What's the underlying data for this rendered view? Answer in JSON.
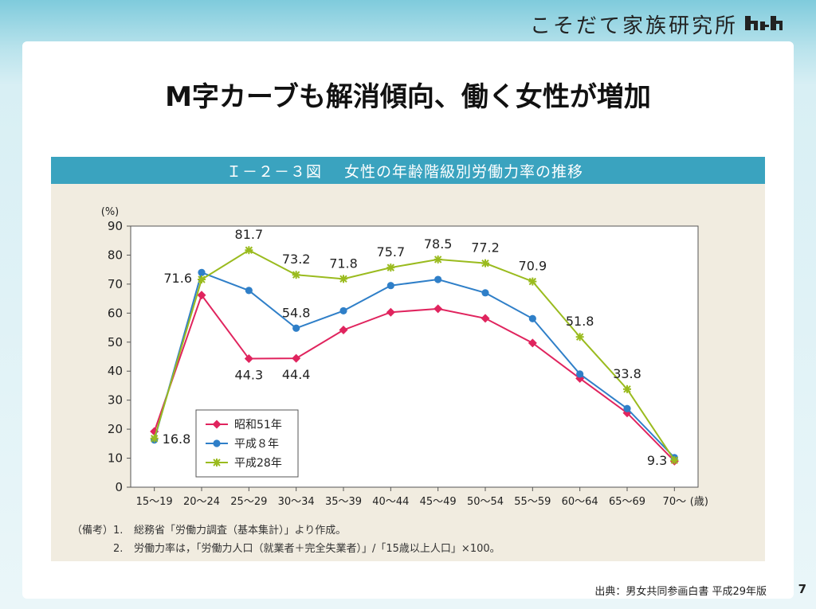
{
  "brand": {
    "name": "こそだて家族研究所"
  },
  "slide": {
    "title": "M字カーブも解消傾向、働く女性が増加",
    "figure_number": "Ｉ－２－３図",
    "figure_title": "女性の年齢階級別労働力率の推移",
    "notes": {
      "label": "（備考）",
      "item1_num": "1.",
      "item1_text": "総務省「労働力調査（基本集計）」より作成。",
      "item2_num": "2.",
      "item2_text": "労働力率は，「労働力人口（就業者＋完全失業者）」/「15歳以上人口」×100。"
    },
    "source": "出典：男女共同参画白書 平成29年版",
    "page_number": "7"
  },
  "colors": {
    "showa51": "#e0245e",
    "heisei8": "#2f7fc8",
    "heisei28": "#9abb1e",
    "header_bar": "#3aa3bf",
    "figure_bg": "#f1ece0"
  },
  "chart_data": {
    "type": "line",
    "ylabel": "(%)",
    "xlabel_suffix": "(歳)",
    "ylim": [
      0,
      90
    ],
    "yticks": [
      0,
      10,
      20,
      30,
      40,
      50,
      60,
      70,
      80,
      90
    ],
    "grid": false,
    "legend_position": "bottom-left",
    "categories": [
      "15～19",
      "20～24",
      "25～29",
      "30～34",
      "35～39",
      "40～44",
      "45～49",
      "50～54",
      "55～59",
      "60～64",
      "65～69",
      "70～"
    ],
    "series": [
      {
        "name": "昭和51年",
        "marker": "diamond",
        "color": "#e0245e",
        "values": [
          19.2,
          66.2,
          44.3,
          44.4,
          54.2,
          60.3,
          61.5,
          58.2,
          49.7,
          37.5,
          25.6,
          9.0
        ],
        "labeled_values": [
          2,
          3
        ]
      },
      {
        "name": "平成８年",
        "marker": "circle",
        "color": "#2f7fc8",
        "values": [
          16.3,
          74.0,
          67.8,
          54.8,
          60.8,
          69.5,
          71.6,
          67.0,
          58.1,
          39.0,
          27.1,
          10.2
        ],
        "labeled_values": [
          3
        ]
      },
      {
        "name": "平成28年",
        "marker": "asterisk",
        "color": "#9abb1e",
        "values": [
          16.8,
          71.6,
          81.7,
          73.2,
          71.8,
          75.7,
          78.5,
          77.2,
          70.9,
          51.8,
          33.8,
          9.3
        ],
        "labeled_values": [
          0,
          1,
          2,
          3,
          4,
          5,
          6,
          7,
          8,
          9,
          10,
          11
        ]
      }
    ]
  }
}
